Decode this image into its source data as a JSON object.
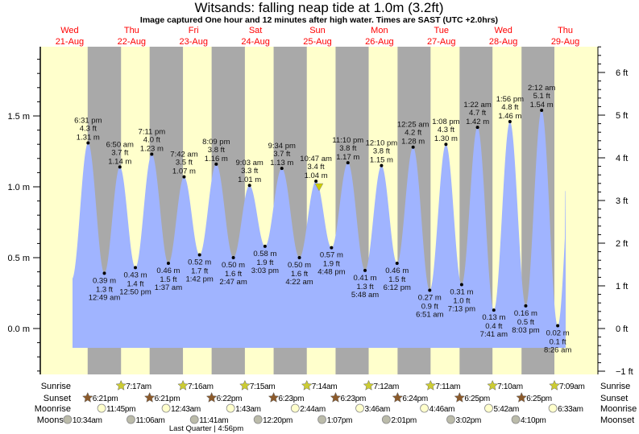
{
  "chart_data": {
    "type": "area",
    "title": "Witsands: falling  neap tide at 1.0m (3.2ft)",
    "subtitle": "Image captured One hour and 12 minutes after high water. Times are SAST (UTC +2.0hrs)",
    "colors": {
      "water": "#a0b4ff",
      "day": "#ffffcc",
      "night": "#a9a9a9",
      "day_label": "#ff0000",
      "sunrise": "#cccc33",
      "sunset": "#8b5a2b",
      "moonrise": "#ffffcc",
      "moonset": "#bbbbaa",
      "now_marker": "#cccc00"
    },
    "x_range": [
      "2024-08-21 00:00",
      "2024-08-30 00:00"
    ],
    "days": [
      {
        "dow": "Wed",
        "date": "21-Aug"
      },
      {
        "dow": "Thu",
        "date": "22-Aug"
      },
      {
        "dow": "Fri",
        "date": "23-Aug"
      },
      {
        "dow": "Sat",
        "date": "24-Aug"
      },
      {
        "dow": "Sun",
        "date": "25-Aug"
      },
      {
        "dow": "Mon",
        "date": "26-Aug"
      },
      {
        "dow": "Tue",
        "date": "27-Aug"
      },
      {
        "dow": "Wed",
        "date": "28-Aug"
      },
      {
        "dow": "Thu",
        "date": "29-Aug"
      }
    ],
    "y_left": {
      "unit": "m",
      "range": [
        -0.15,
        2.0
      ],
      "ticks": [
        "0.0 m",
        "0.5 m",
        "1.0 m",
        "1.5 m"
      ],
      "tick_values": [
        0,
        0.5,
        1.0,
        1.5
      ]
    },
    "y_right": {
      "unit": "ft",
      "ticks": [
        "−1 ft",
        "0 ft",
        "1 ft",
        "2 ft",
        "3 ft",
        "4 ft",
        "5 ft",
        "6 ft"
      ],
      "tick_values": [
        -1,
        0,
        1,
        2,
        3,
        4,
        5,
        6
      ]
    },
    "now": {
      "day": 4,
      "time": "11:59",
      "height_m": 1.0
    },
    "extremes": [
      {
        "day": 0,
        "time": "6:31 pm",
        "m": "1.31 m",
        "ft": "4.3 ft",
        "value": 1.31,
        "type": "high"
      },
      {
        "day": 1,
        "time": "12:49 am",
        "m": "0.39 m",
        "ft": "1.3 ft",
        "value": 0.39,
        "type": "low"
      },
      {
        "day": 1,
        "time": "6:50 am",
        "m": "1.14 m",
        "ft": "3.7 ft",
        "value": 1.14,
        "type": "high"
      },
      {
        "day": 1,
        "time": "12:50 pm",
        "m": "0.43 m",
        "ft": "1.4 ft",
        "value": 0.43,
        "type": "low"
      },
      {
        "day": 1,
        "time": "7:11 pm",
        "m": "1.23 m",
        "ft": "4.0 ft",
        "value": 1.23,
        "type": "high"
      },
      {
        "day": 2,
        "time": "1:37 am",
        "m": "0.46 m",
        "ft": "1.5 ft",
        "value": 0.46,
        "type": "low"
      },
      {
        "day": 2,
        "time": "7:42 am",
        "m": "1.07 m",
        "ft": "3.5 ft",
        "value": 1.07,
        "type": "high"
      },
      {
        "day": 2,
        "time": "1:42 pm",
        "m": "0.52 m",
        "ft": "1.7 ft",
        "value": 0.52,
        "type": "low"
      },
      {
        "day": 2,
        "time": "8:09 pm",
        "m": "1.16 m",
        "ft": "3.8 ft",
        "value": 1.16,
        "type": "high"
      },
      {
        "day": 3,
        "time": "2:47 am",
        "m": "0.50 m",
        "ft": "1.6 ft",
        "value": 0.5,
        "type": "low"
      },
      {
        "day": 3,
        "time": "9:03 am",
        "m": "1.01 m",
        "ft": "3.3 ft",
        "value": 1.01,
        "type": "high"
      },
      {
        "day": 3,
        "time": "3:03 pm",
        "m": "0.58 m",
        "ft": "1.9 ft",
        "value": 0.58,
        "type": "low"
      },
      {
        "day": 3,
        "time": "9:34 pm",
        "m": "1.13 m",
        "ft": "3.7 ft",
        "value": 1.13,
        "type": "high"
      },
      {
        "day": 4,
        "time": "4:22 am",
        "m": "0.50 m",
        "ft": "1.6 ft",
        "value": 0.5,
        "type": "low"
      },
      {
        "day": 4,
        "time": "10:47 am",
        "m": "1.04 m",
        "ft": "3.4 ft",
        "value": 1.04,
        "type": "high"
      },
      {
        "day": 4,
        "time": "4:48 pm",
        "m": "0.57 m",
        "ft": "1.9 ft",
        "value": 0.57,
        "type": "low"
      },
      {
        "day": 4,
        "time": "11:10 pm",
        "m": "1.17 m",
        "ft": "3.8 ft",
        "value": 1.17,
        "type": "high"
      },
      {
        "day": 5,
        "time": "5:48 am",
        "m": "0.41 m",
        "ft": "1.3 ft",
        "value": 0.41,
        "type": "low"
      },
      {
        "day": 5,
        "time": "12:10 pm",
        "m": "1.15 m",
        "ft": "3.8 ft",
        "value": 1.15,
        "type": "high"
      },
      {
        "day": 5,
        "time": "6:12 pm",
        "m": "0.46 m",
        "ft": "1.5 ft",
        "value": 0.46,
        "type": "low"
      },
      {
        "day": 6,
        "time": "12:25 am",
        "m": "1.28 m",
        "ft": "4.2 ft",
        "value": 1.28,
        "type": "high"
      },
      {
        "day": 6,
        "time": "6:51 am",
        "m": "0.27 m",
        "ft": "0.9 ft",
        "value": 0.27,
        "type": "low"
      },
      {
        "day": 6,
        "time": "1:08 pm",
        "m": "1.30 m",
        "ft": "4.3 ft",
        "value": 1.3,
        "type": "high"
      },
      {
        "day": 6,
        "time": "7:13 pm",
        "m": "0.31 m",
        "ft": "1.0 ft",
        "value": 0.31,
        "type": "low"
      },
      {
        "day": 7,
        "time": "1:22 am",
        "m": "1.42 m",
        "ft": "4.7 ft",
        "value": 1.42,
        "type": "high"
      },
      {
        "day": 7,
        "time": "7:41 am",
        "m": "0.13 m",
        "ft": "0.4 ft",
        "value": 0.13,
        "type": "low"
      },
      {
        "day": 7,
        "time": "1:56 pm",
        "m": "1.46 m",
        "ft": "4.8 ft",
        "value": 1.46,
        "type": "high"
      },
      {
        "day": 7,
        "time": "8:03 pm",
        "m": "0.16 m",
        "ft": "0.5 ft",
        "value": 0.16,
        "type": "low"
      },
      {
        "day": 8,
        "time": "2:12 am",
        "m": "1.54 m",
        "ft": "5.1 ft",
        "value": 1.54,
        "type": "high"
      },
      {
        "day": 8,
        "time": "8:26 am",
        "m": "0.02 m",
        "ft": "0.1 ft",
        "value": 0.02,
        "type": "low"
      }
    ],
    "rows": {
      "labels": {
        "sunrise": "Sunrise",
        "sunset": "Sunset",
        "moonrise": "Moonrise",
        "moonset": "Moonset"
      },
      "sunrise": [
        {
          "day": 1,
          "time": "7:17am"
        },
        {
          "day": 2,
          "time": "7:16am"
        },
        {
          "day": 3,
          "time": "7:15am"
        },
        {
          "day": 4,
          "time": "7:14am"
        },
        {
          "day": 5,
          "time": "7:12am"
        },
        {
          "day": 6,
          "time": "7:11am"
        },
        {
          "day": 7,
          "time": "7:10am"
        },
        {
          "day": 8,
          "time": "7:09am"
        }
      ],
      "sunset": [
        {
          "day": 0,
          "time": "6:21pm"
        },
        {
          "day": 1,
          "time": "6:21pm"
        },
        {
          "day": 2,
          "time": "6:22pm"
        },
        {
          "day": 3,
          "time": "6:23pm"
        },
        {
          "day": 4,
          "time": "6:23pm"
        },
        {
          "day": 5,
          "time": "6:24pm"
        },
        {
          "day": 6,
          "time": "6:25pm"
        },
        {
          "day": 7,
          "time": "6:25pm"
        }
      ],
      "moonrise": [
        {
          "day": 0,
          "time": "11:45pm"
        },
        {
          "day": 2,
          "time": "12:43am"
        },
        {
          "day": 3,
          "time": "1:43am"
        },
        {
          "day": 4,
          "time": "2:44am"
        },
        {
          "day": 5,
          "time": "3:46am"
        },
        {
          "day": 6,
          "time": "4:46am"
        },
        {
          "day": 7,
          "time": "5:42am"
        },
        {
          "day": 8,
          "time": "6:33am"
        }
      ],
      "moonset": [
        {
          "day": 0,
          "time": "10:34am"
        },
        {
          "day": 1,
          "time": "11:06am"
        },
        {
          "day": 2,
          "time": "11:41am"
        },
        {
          "day": 3,
          "time": "12:20pm"
        },
        {
          "day": 4,
          "time": "1:07pm"
        },
        {
          "day": 5,
          "time": "2:01pm"
        },
        {
          "day": 6,
          "time": "3:02pm"
        },
        {
          "day": 7,
          "time": "4:10pm"
        }
      ]
    },
    "moon_phase": {
      "text": "Last Quarter | 4:56pm",
      "day": 2,
      "time": "4:56pm"
    }
  }
}
